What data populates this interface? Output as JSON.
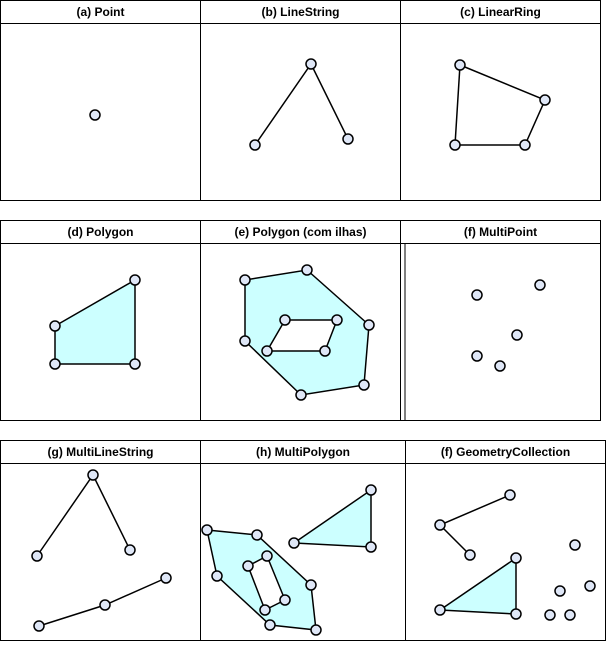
{
  "panels": {
    "a": {
      "title": "(a) Point"
    },
    "b": {
      "title": "(b) LineString"
    },
    "c": {
      "title": "(c) LinearRing"
    },
    "d": {
      "title": "(d) Polygon"
    },
    "e": {
      "title": "(e) Polygon (com ilhas)"
    },
    "f": {
      "title": "(f) MultiPoint"
    },
    "g": {
      "title": "(g) MultiLineString"
    },
    "h": {
      "title": "(h) MultiPolygon"
    },
    "i": {
      "title": "(f) GeometryCollection"
    }
  },
  "colors": {
    "fill": "#ccffff",
    "vertex_fill": "#dfe7f7",
    "stroke": "#000000"
  }
}
